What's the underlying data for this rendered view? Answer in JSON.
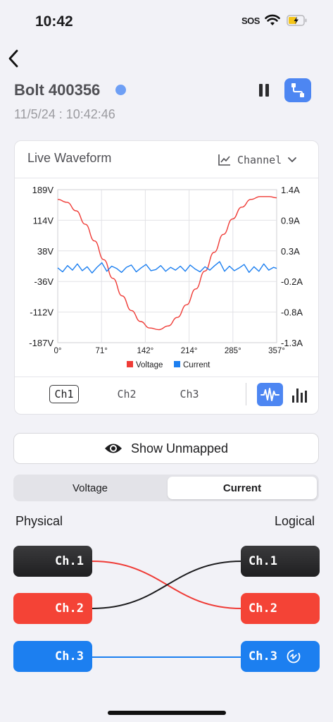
{
  "status_bar": {
    "time": "10:42",
    "sos": "SOS",
    "wifi_icon": "wifi-icon",
    "battery_icon": "battery-charging-icon"
  },
  "header": {
    "back_icon": "chevron-left-icon",
    "device_name": "Bolt 400356",
    "status_dot_color": "#6e9ff5",
    "timestamp": "11/5/24 : 10:42:46",
    "pause_icon": "pause-icon",
    "mapping_icon": "connection-icon",
    "accent_color": "#4d86f2"
  },
  "waveform_card": {
    "title": "Live Waveform",
    "channel_dropdown": {
      "icon": "line-chart-icon",
      "label": "Channel",
      "chevron": "chevron-down-icon"
    },
    "channel_tabs": [
      {
        "label": "Ch1",
        "active": true
      },
      {
        "label": "Ch2",
        "active": false
      },
      {
        "label": "Ch3",
        "active": false
      }
    ],
    "view_toggles": {
      "waveform_icon": "waveform-icon",
      "bars_icon": "bar-chart-icon",
      "selected": "waveform"
    }
  },
  "chart_data": {
    "type": "line",
    "x_ticks": [
      "0°",
      "71°",
      "142°",
      "214°",
      "285°",
      "357°"
    ],
    "x_range": [
      0,
      357
    ],
    "y_left_ticks": [
      "189V",
      "114V",
      "38V",
      "-36V",
      "-112V",
      "-187V"
    ],
    "y_left_range": [
      -187,
      189
    ],
    "y_right_ticks": [
      "1.4A",
      "0.9A",
      "0.3A",
      "-0.2A",
      "-0.8A",
      "-1.3A"
    ],
    "y_right_range": [
      -1.3,
      1.4
    ],
    "grid": true,
    "legend_position": "bottom",
    "series": [
      {
        "name": "Voltage",
        "axis": "left",
        "color": "#ef3b36",
        "x": [
          0,
          15,
          30,
          45,
          60,
          75,
          90,
          105,
          120,
          135,
          150,
          165,
          180,
          195,
          210,
          225,
          240,
          255,
          270,
          285,
          300,
          315,
          330,
          345,
          357
        ],
        "y": [
          165,
          158,
          137,
          104,
          63,
          17,
          -29,
          -72,
          -108,
          -135,
          -151,
          -155,
          -146,
          -125,
          -94,
          -55,
          -11,
          35,
          79,
          117,
          146,
          165,
          172,
          172,
          169
        ]
      },
      {
        "name": "Current",
        "axis": "right",
        "color": "#1c7ff0",
        "x": [
          0,
          8,
          16,
          24,
          32,
          40,
          48,
          56,
          64,
          72,
          80,
          88,
          96,
          104,
          112,
          120,
          128,
          136,
          144,
          152,
          160,
          168,
          176,
          184,
          192,
          200,
          208,
          216,
          224,
          232,
          240,
          248,
          256,
          264,
          272,
          280,
          288,
          296,
          304,
          312,
          320,
          328,
          336,
          344,
          352,
          357
        ],
        "y": [
          0.02,
          -0.05,
          0.06,
          -0.02,
          0.09,
          -0.03,
          0.04,
          -0.07,
          0.03,
          0.11,
          -0.04,
          0.05,
          0.01,
          -0.06,
          0.03,
          0.07,
          -0.05,
          0.02,
          0.08,
          -0.03,
          -0.01,
          0.06,
          -0.04,
          0.03,
          -0.02,
          0.05,
          -0.04,
          0.07,
          0.0,
          -0.05,
          0.04,
          -0.02,
          0.06,
          0.13,
          -0.04,
          0.05,
          -0.03,
          0.02,
          0.08,
          -0.06,
          0.04,
          -0.04,
          0.09,
          -0.02,
          0.03,
          0.01
        ]
      }
    ]
  },
  "show_unmapped": {
    "icon": "eye-icon",
    "label": "Show Unmapped"
  },
  "segmented": {
    "options": [
      "Voltage",
      "Current"
    ],
    "selected": "Current"
  },
  "mapping": {
    "physical_label": "Physical",
    "logical_label": "Logical",
    "physical_channels": [
      {
        "label": "Ch.1",
        "color": "dark"
      },
      {
        "label": "Ch.2",
        "color": "red"
      },
      {
        "label": "Ch.3",
        "color": "blue"
      }
    ],
    "logical_channels": [
      {
        "label": "Ch.1",
        "color": "dark"
      },
      {
        "label": "Ch.2",
        "color": "red"
      },
      {
        "label": "Ch.3",
        "color": "blue",
        "icon": "sync-icon"
      }
    ],
    "connections": [
      {
        "from": "Ch.1",
        "to": "Ch.2",
        "color": "#ef3b36"
      },
      {
        "from": "Ch.2",
        "to": "Ch.1",
        "color": "#1c1c1e"
      },
      {
        "from": "Ch.3",
        "to": "Ch.3",
        "color": "#1c7ff0"
      }
    ]
  }
}
